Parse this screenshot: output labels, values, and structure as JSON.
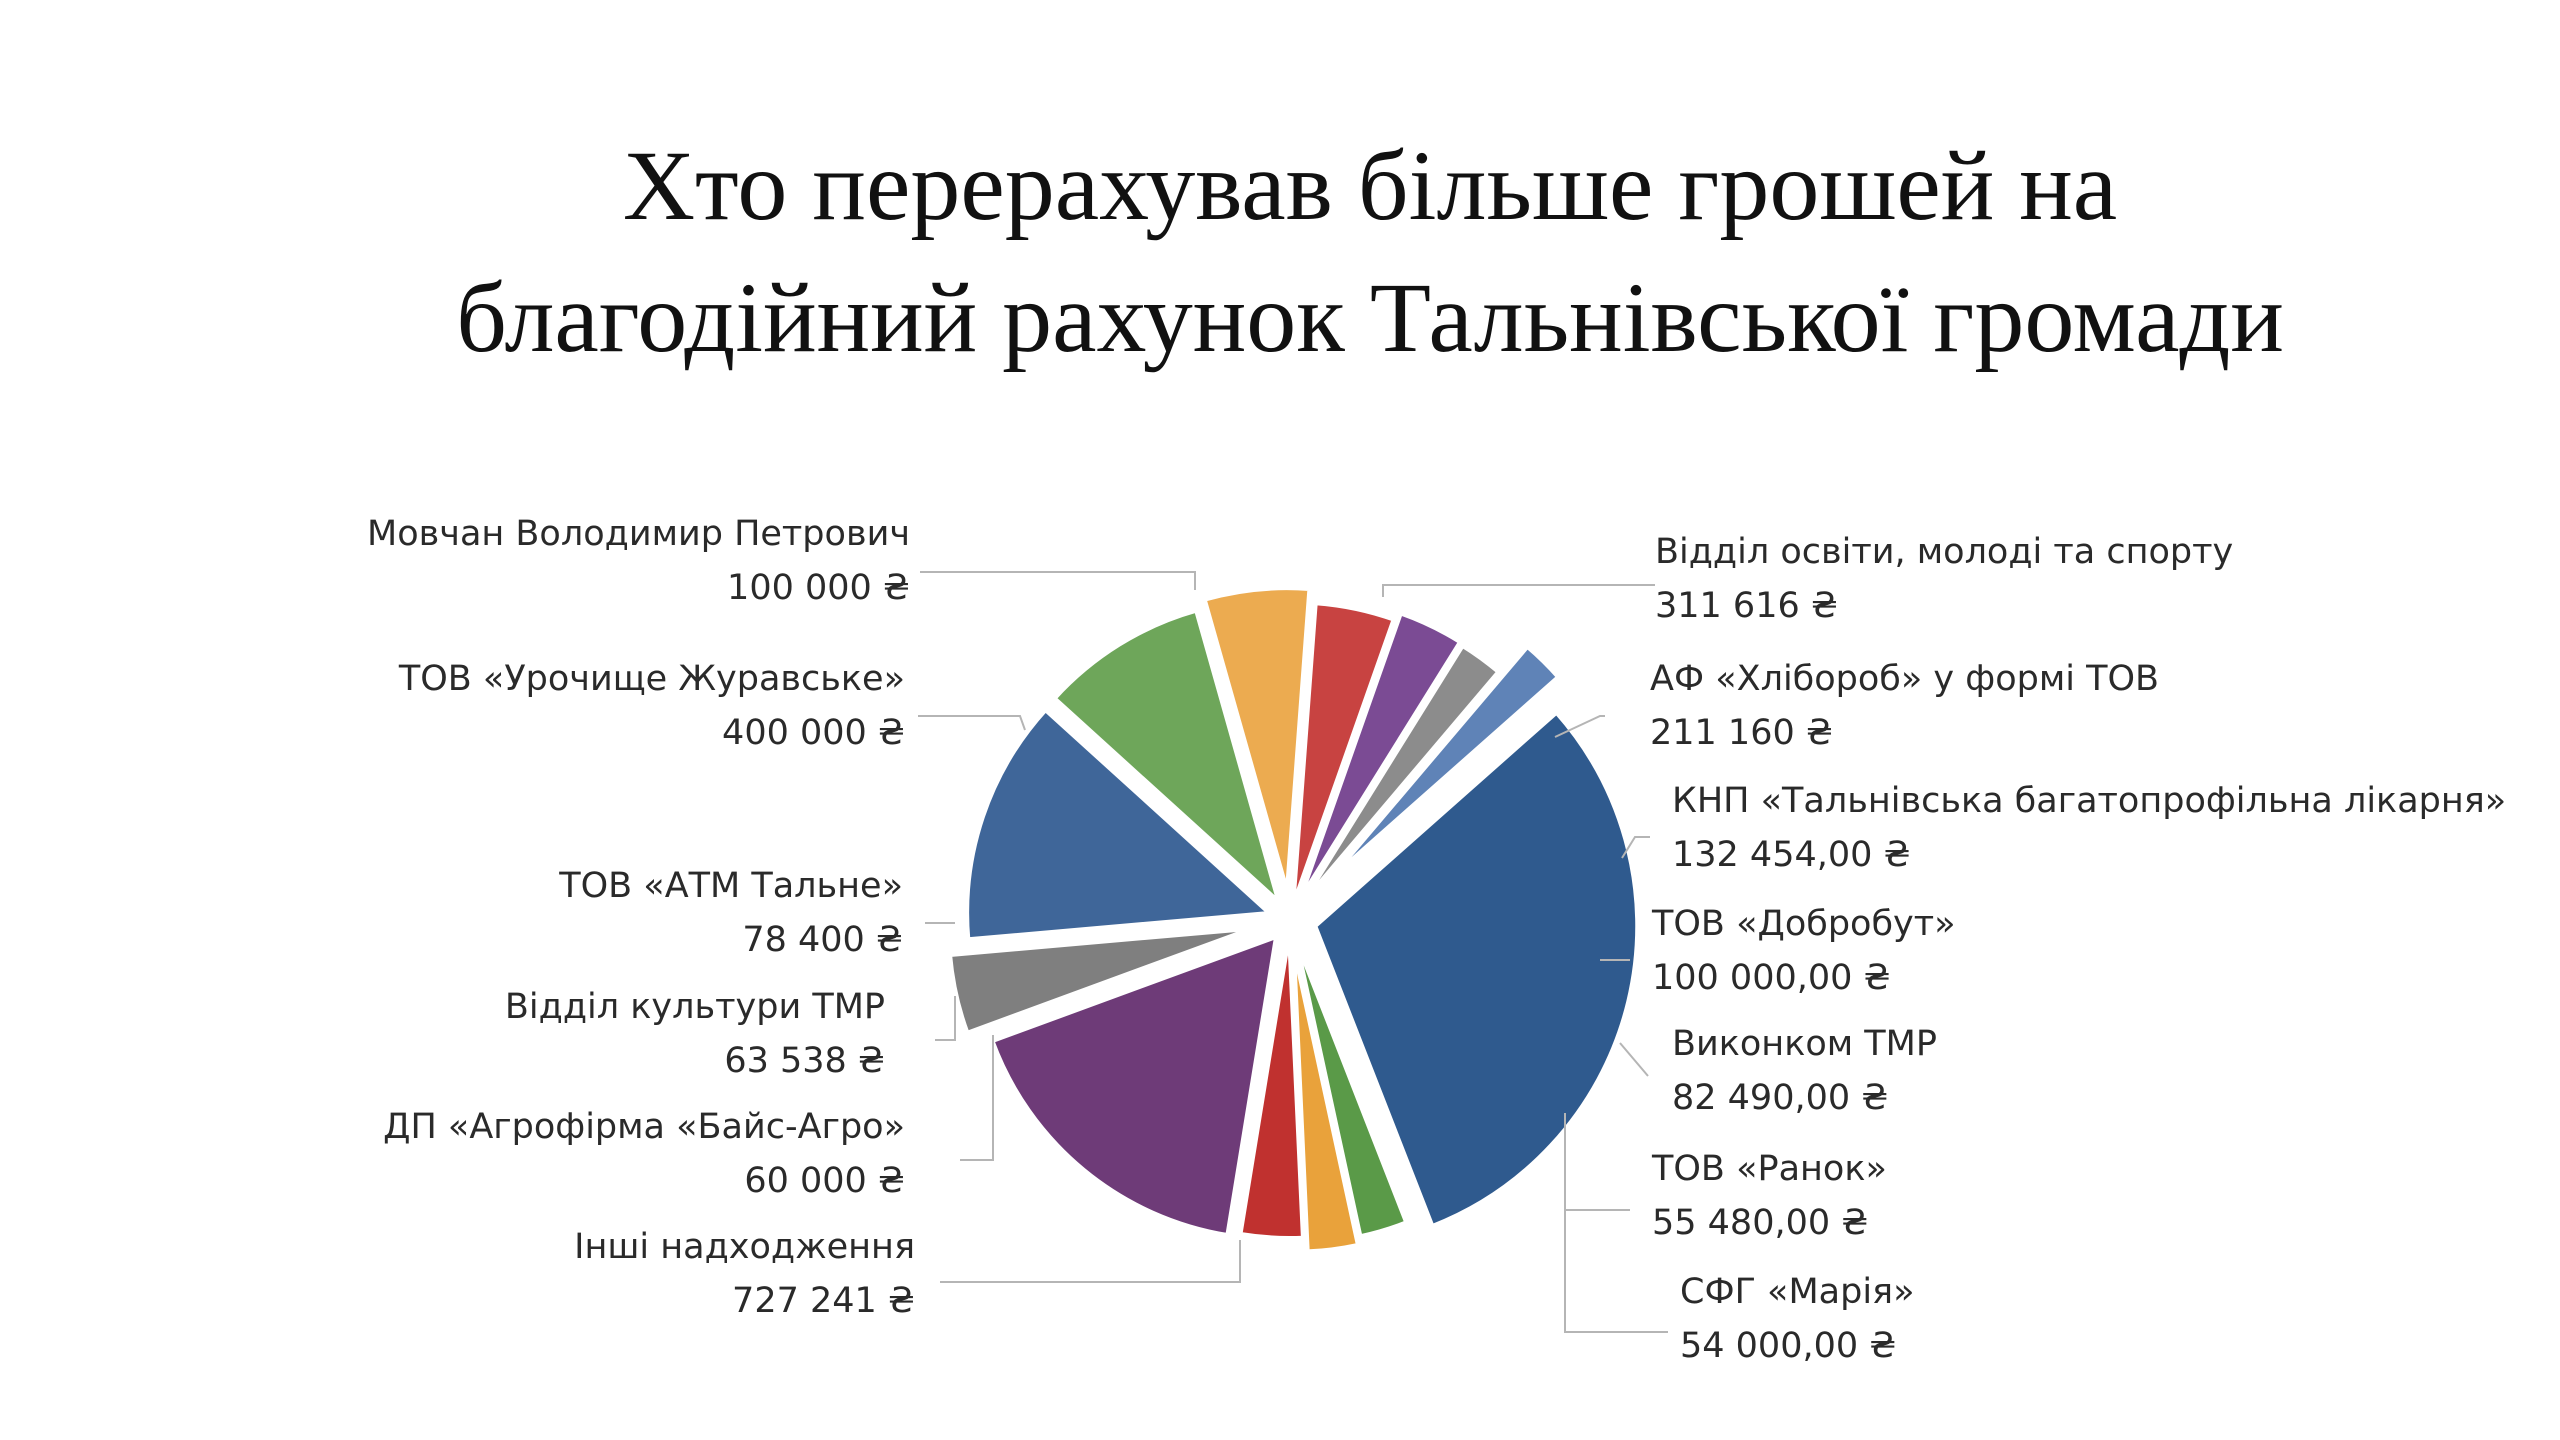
{
  "title_lines": [
    "Хто перерахував більше грошей на",
    "благодійний рахунок Тальнівської громади"
  ],
  "chart_data": {
    "type": "pie",
    "title": "Хто перерахував більше грошей на благодійний рахунок Тальнівської громади",
    "exploded": true,
    "legend": "none",
    "slices": [
      {
        "name": "Відділ освіти, молоді та спорту",
        "value": 311616,
        "value_label": "311 616 ₴",
        "color": "#3f6699"
      },
      {
        "name": "АФ «Хлібороб» у формі ТОВ",
        "value": 211160,
        "value_label": "211 160 ₴",
        "color": "#6ea65a"
      },
      {
        "name": "КНП «Тальнівська багатопрофільна лікарня»",
        "value": 132454,
        "value_label": "132 454,00 ₴",
        "color": "#ecab50"
      },
      {
        "name": "ТОВ «Добробут»",
        "value": 100000,
        "value_label": "100 000,00 ₴",
        "color": "#c84341"
      },
      {
        "name": "Виконком ТМР",
        "value": 82490,
        "value_label": "82 490,00 ₴",
        "color": "#7b4b94"
      },
      {
        "name": "ТОВ «Ранок»",
        "value": 55480,
        "value_label": "55 480,00 ₴",
        "color": "#8c8c8c"
      },
      {
        "name": "СФГ «Марія»",
        "value": 54000,
        "value_label": "54 000,00 ₴",
        "color": "#5f83b7"
      },
      {
        "name": "Інші надходження",
        "value": 727241,
        "value_label": "727 241 ₴",
        "color": "#2f5a8e"
      },
      {
        "name": "ДП «Агрофірма «Байс-Агро»",
        "value": 60000,
        "value_label": "60 000 ₴",
        "color": "#5a9a48"
      },
      {
        "name": "Відділ культури ТМР",
        "value": 63538,
        "value_label": "63 538 ₴",
        "color": "#e9a23b"
      },
      {
        "name": "ТОВ «АТМ Тальне»",
        "value": 78400,
        "value_label": "78 400 ₴",
        "color": "#c0312f"
      },
      {
        "name": "ТОВ «Урочище Журавське»",
        "value": 400000,
        "value_label": "400 000 ₴",
        "color": "#6e3b78"
      },
      {
        "name": "Мовчан Володимир Петрович",
        "value": 100000,
        "value_label": "100 000 ₴",
        "color": "#7f7f7f"
      }
    ]
  }
}
